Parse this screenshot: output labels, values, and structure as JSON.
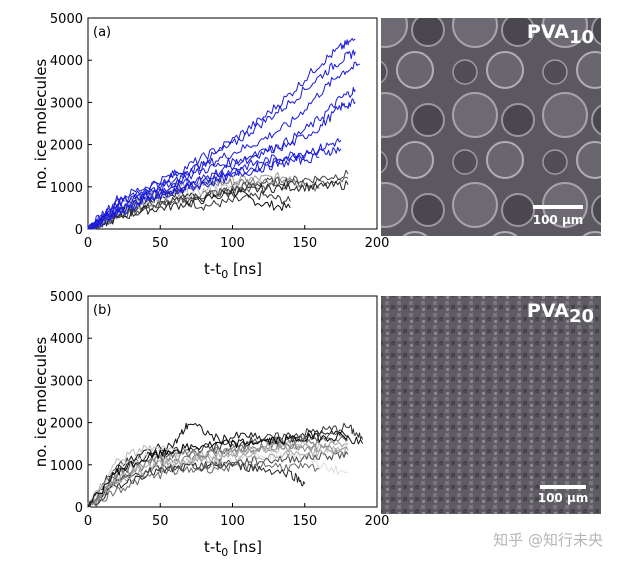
{
  "chart_data": [
    {
      "type": "line",
      "panel_label": "(a)",
      "xlabel": "t-t",
      "xlabel_sub": "0",
      "xlabel_unit": " [ns]",
      "ylabel": "no. ice molecules",
      "xlim": [
        0,
        200
      ],
      "ylim": [
        0,
        5000
      ],
      "xticks": [
        0,
        50,
        100,
        150,
        200
      ],
      "yticks": [
        0,
        1000,
        2000,
        3000,
        4000,
        5000
      ],
      "series": [
        {
          "color": "#1a1adc",
          "x": [
            0,
            20,
            40,
            60,
            80,
            100,
            120,
            140,
            160,
            175,
            185
          ],
          "values": [
            0,
            600,
            900,
            1300,
            1700,
            2100,
            2600,
            3200,
            3900,
            4300,
            4500
          ]
        },
        {
          "color": "#1a1adc",
          "x": [
            0,
            20,
            40,
            60,
            80,
            100,
            120,
            140,
            160,
            175,
            185
          ],
          "values": [
            0,
            500,
            850,
            1100,
            1600,
            2000,
            2500,
            3000,
            3600,
            4000,
            4200
          ]
        },
        {
          "color": "#1a1adc",
          "x": [
            0,
            20,
            40,
            60,
            80,
            100,
            120,
            140,
            160,
            175,
            188
          ],
          "values": [
            0,
            700,
            1000,
            1300,
            1500,
            1800,
            2100,
            2500,
            3200,
            3700,
            3900
          ]
        },
        {
          "color": "#1a1adc",
          "x": [
            0,
            20,
            40,
            60,
            80,
            100,
            120,
            140,
            160,
            175,
            185
          ],
          "values": [
            0,
            600,
            900,
            1100,
            1400,
            1600,
            1800,
            2100,
            2600,
            3100,
            3300
          ]
        },
        {
          "color": "#1a1adc",
          "x": [
            0,
            20,
            40,
            60,
            80,
            100,
            120,
            140,
            160,
            175,
            185
          ],
          "values": [
            0,
            400,
            700,
            950,
            1200,
            1500,
            1800,
            2000,
            2400,
            2900,
            3000
          ]
        },
        {
          "color": "#1a1adc",
          "x": [
            0,
            20,
            40,
            60,
            80,
            100,
            120,
            140,
            160,
            175
          ],
          "values": [
            0,
            500,
            800,
            1000,
            1200,
            1400,
            1600,
            1750,
            1900,
            2100
          ]
        },
        {
          "color": "#1a1adc",
          "x": [
            0,
            20,
            40,
            60,
            80,
            100,
            120,
            140,
            160,
            175
          ],
          "values": [
            0,
            400,
            750,
            900,
            1100,
            1300,
            1500,
            1700,
            1800,
            1900
          ]
        },
        {
          "color": "#1a1adc",
          "x": [
            0,
            20,
            40,
            60,
            80,
            100,
            120,
            140,
            160
          ],
          "values": [
            0,
            350,
            650,
            900,
            1050,
            1250,
            1450,
            1600,
            1700
          ]
        },
        {
          "color": "#111111",
          "x": [
            0,
            20,
            40,
            60,
            80,
            100,
            120,
            140
          ],
          "values": [
            0,
            450,
            650,
            850,
            750,
            900,
            600,
            500
          ]
        },
        {
          "color": "#333333",
          "x": [
            0,
            20,
            40,
            60,
            80,
            100,
            120,
            140
          ],
          "values": [
            0,
            350,
            600,
            700,
            550,
            650,
            800,
            650
          ]
        },
        {
          "color": "#555555",
          "x": [
            0,
            20,
            40,
            60,
            80,
            100,
            120,
            140,
            160,
            180
          ],
          "values": [
            0,
            300,
            550,
            700,
            800,
            900,
            1000,
            1050,
            1100,
            1200
          ]
        },
        {
          "color": "#777777",
          "x": [
            0,
            20,
            40,
            60,
            80,
            100,
            120,
            140,
            160
          ],
          "values": [
            0,
            500,
            800,
            1000,
            1050,
            1100,
            1150,
            1100,
            950
          ]
        },
        {
          "color": "#999999",
          "x": [
            0,
            20,
            40,
            60,
            80,
            100,
            120,
            140
          ],
          "values": [
            0,
            400,
            750,
            950,
            1100,
            1150,
            1200,
            1250
          ]
        },
        {
          "color": "#bbbbbb",
          "x": [
            0,
            20,
            40,
            60,
            80,
            100,
            120
          ],
          "values": [
            0,
            350,
            600,
            800,
            900,
            1000,
            1100
          ]
        },
        {
          "color": "#444444",
          "x": [
            0,
            20,
            40,
            60,
            80,
            100,
            120,
            140,
            160,
            180
          ],
          "values": [
            0,
            300,
            500,
            650,
            800,
            950,
            1100,
            1150,
            1200,
            1300
          ]
        },
        {
          "color": "#222222",
          "x": [
            0,
            20,
            40,
            60,
            80,
            100,
            120,
            140,
            160,
            180
          ],
          "values": [
            0,
            250,
            450,
            550,
            700,
            850,
            950,
            1000,
            1000,
            1050
          ]
        }
      ],
      "image_label_main": "PVA",
      "image_label_sub": "10",
      "scalebar_label": "100 µm"
    },
    {
      "type": "line",
      "panel_label": "(b)",
      "xlabel": "t-t",
      "xlabel_sub": "0",
      "xlabel_unit": " [ns]",
      "ylabel": "no. ice molecules",
      "xlim": [
        0,
        200
      ],
      "ylim": [
        0,
        5000
      ],
      "xticks": [
        0,
        50,
        100,
        150,
        200
      ],
      "yticks": [
        0,
        1000,
        2000,
        3000,
        4000,
        5000
      ],
      "series": [
        {
          "color": "#111111",
          "x": [
            0,
            20,
            40,
            60,
            70,
            90,
            110,
            130,
            150,
            170,
            190
          ],
          "values": [
            0,
            900,
            1300,
            1500,
            2000,
            1600,
            1700,
            1500,
            1700,
            1800,
            1500
          ]
        },
        {
          "color": "#333333",
          "x": [
            0,
            20,
            40,
            60,
            80,
            100,
            120,
            140,
            160,
            180,
            190
          ],
          "values": [
            0,
            1000,
            1200,
            1300,
            1400,
            1500,
            1600,
            1700,
            1800,
            1900,
            1600
          ]
        },
        {
          "color": "#555555",
          "x": [
            0,
            20,
            40,
            60,
            80,
            100,
            120,
            140,
            160,
            180
          ],
          "values": [
            0,
            800,
            1100,
            1250,
            1300,
            1400,
            1550,
            1600,
            1650,
            1700
          ]
        },
        {
          "color": "#777777",
          "x": [
            0,
            20,
            40,
            60,
            80,
            100,
            120,
            140,
            160,
            180
          ],
          "values": [
            0,
            700,
            1000,
            1150,
            1200,
            1350,
            1450,
            1500,
            1550,
            1600
          ]
        },
        {
          "color": "#999999",
          "x": [
            0,
            20,
            40,
            60,
            80,
            100,
            120,
            140,
            160,
            180
          ],
          "values": [
            0,
            600,
            900,
            1050,
            1150,
            1250,
            1350,
            1400,
            1450,
            1500
          ]
        },
        {
          "color": "#bbbbbb",
          "x": [
            0,
            20,
            40,
            60,
            80,
            100,
            120,
            140,
            160,
            180
          ],
          "values": [
            0,
            1100,
            1400,
            1300,
            1200,
            1300,
            1400,
            1500,
            1400,
            1300
          ]
        },
        {
          "color": "#dddddd",
          "x": [
            0,
            20,
            40,
            60,
            80,
            100,
            120,
            140,
            160,
            180
          ],
          "values": [
            0,
            900,
            1200,
            1100,
            1000,
            1100,
            1200,
            1300,
            1000,
            800
          ]
        },
        {
          "color": "#222222",
          "x": [
            0,
            20,
            40,
            60,
            80,
            100,
            120,
            140,
            150
          ],
          "values": [
            0,
            500,
            800,
            900,
            950,
            1000,
            900,
            800,
            550
          ]
        },
        {
          "color": "#444444",
          "x": [
            0,
            20,
            40,
            60,
            80,
            100,
            120,
            140,
            160,
            180
          ],
          "values": [
            0,
            600,
            850,
            950,
            1000,
            1050,
            1100,
            1150,
            1200,
            1250
          ]
        },
        {
          "color": "#666666",
          "x": [
            0,
            20,
            40,
            60,
            80,
            100,
            120,
            140,
            160
          ],
          "values": [
            0,
            400,
            700,
            850,
            900,
            950,
            1000,
            950,
            900
          ]
        },
        {
          "color": "#888888",
          "x": [
            0,
            20,
            40,
            60,
            80,
            100,
            120,
            140,
            160,
            180
          ],
          "values": [
            0,
            750,
            1050,
            1200,
            1300,
            1350,
            1400,
            1450,
            1400,
            1350
          ]
        },
        {
          "color": "#aaaaaa",
          "x": [
            0,
            20,
            40,
            60,
            80,
            100,
            120,
            140,
            160,
            180
          ],
          "values": [
            0,
            650,
            950,
            1050,
            1100,
            1150,
            1200,
            1250,
            1300,
            1350
          ]
        },
        {
          "color": "#000000",
          "x": [
            0,
            20,
            40,
            60,
            80,
            100,
            120,
            140,
            160,
            180
          ],
          "values": [
            0,
            850,
            1150,
            1350,
            1450,
            1500,
            1550,
            1600,
            1650,
            1700
          ]
        }
      ],
      "image_label_main": "PVA",
      "image_label_sub": "20",
      "scalebar_label": "100 µm"
    }
  ],
  "colors": {
    "blue_series": "#1a1adc",
    "micrograph_a": "#5b5860",
    "micrograph_b": "#5e5c62",
    "scalebar": "#ffffff"
  },
  "watermark": "知乎 @知行未央"
}
